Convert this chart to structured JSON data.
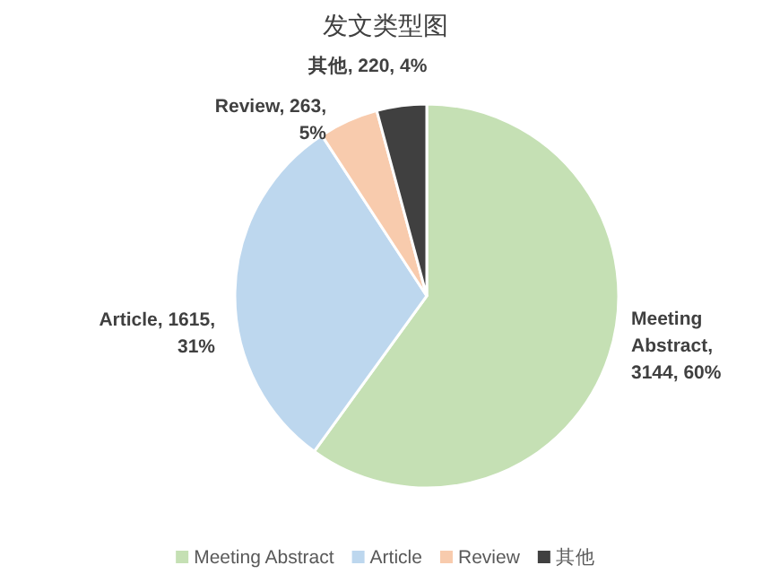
{
  "chart_data": {
    "type": "pie",
    "title": "发文类型图",
    "categories": [
      "Meeting Abstract",
      "Article",
      "Review",
      "其他"
    ],
    "values": [
      3144,
      1615,
      263,
      220
    ],
    "colors": [
      "#c5e0b4",
      "#bdd7ee",
      "#f8cbad",
      "#404040"
    ],
    "value_labels": [
      "Meeting Abstract, 3144, 60%",
      "Article, 1615, 31%",
      "Review, 263, 5%",
      "其他, 220, 4%"
    ],
    "legend": "bottom"
  }
}
